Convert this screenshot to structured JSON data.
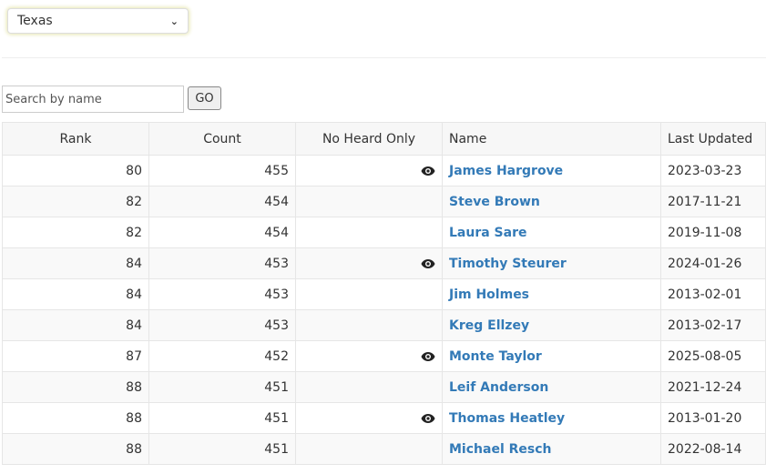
{
  "state_select": {
    "value": "Texas"
  },
  "search": {
    "placeholder": "Search by name",
    "button": "GO"
  },
  "table": {
    "headers": [
      "Rank",
      "Count",
      "No Heard Only",
      "Name",
      "Last Updated"
    ],
    "rows": [
      {
        "rank": "80",
        "count": "455",
        "no_heard_only": true,
        "name": "James Hargrove",
        "updated": "2023-03-23"
      },
      {
        "rank": "82",
        "count": "454",
        "no_heard_only": false,
        "name": "Steve Brown",
        "updated": "2017-11-21"
      },
      {
        "rank": "82",
        "count": "454",
        "no_heard_only": false,
        "name": "Laura Sare",
        "updated": "2019-11-08"
      },
      {
        "rank": "84",
        "count": "453",
        "no_heard_only": true,
        "name": "Timothy Steurer",
        "updated": "2024-01-26"
      },
      {
        "rank": "84",
        "count": "453",
        "no_heard_only": false,
        "name": "Jim Holmes",
        "updated": "2013-02-01"
      },
      {
        "rank": "84",
        "count": "453",
        "no_heard_only": false,
        "name": "Kreg Ellzey",
        "updated": "2013-02-17"
      },
      {
        "rank": "87",
        "count": "452",
        "no_heard_only": true,
        "name": "Monte Taylor",
        "updated": "2025-08-05"
      },
      {
        "rank": "88",
        "count": "451",
        "no_heard_only": false,
        "name": "Leif Anderson",
        "updated": "2021-12-24"
      },
      {
        "rank": "88",
        "count": "451",
        "no_heard_only": true,
        "name": "Thomas Heatley",
        "updated": "2013-01-20"
      },
      {
        "rank": "88",
        "count": "451",
        "no_heard_only": false,
        "name": "Michael Resch",
        "updated": "2022-08-14"
      }
    ]
  },
  "colors": {
    "link": "#337ab7"
  }
}
